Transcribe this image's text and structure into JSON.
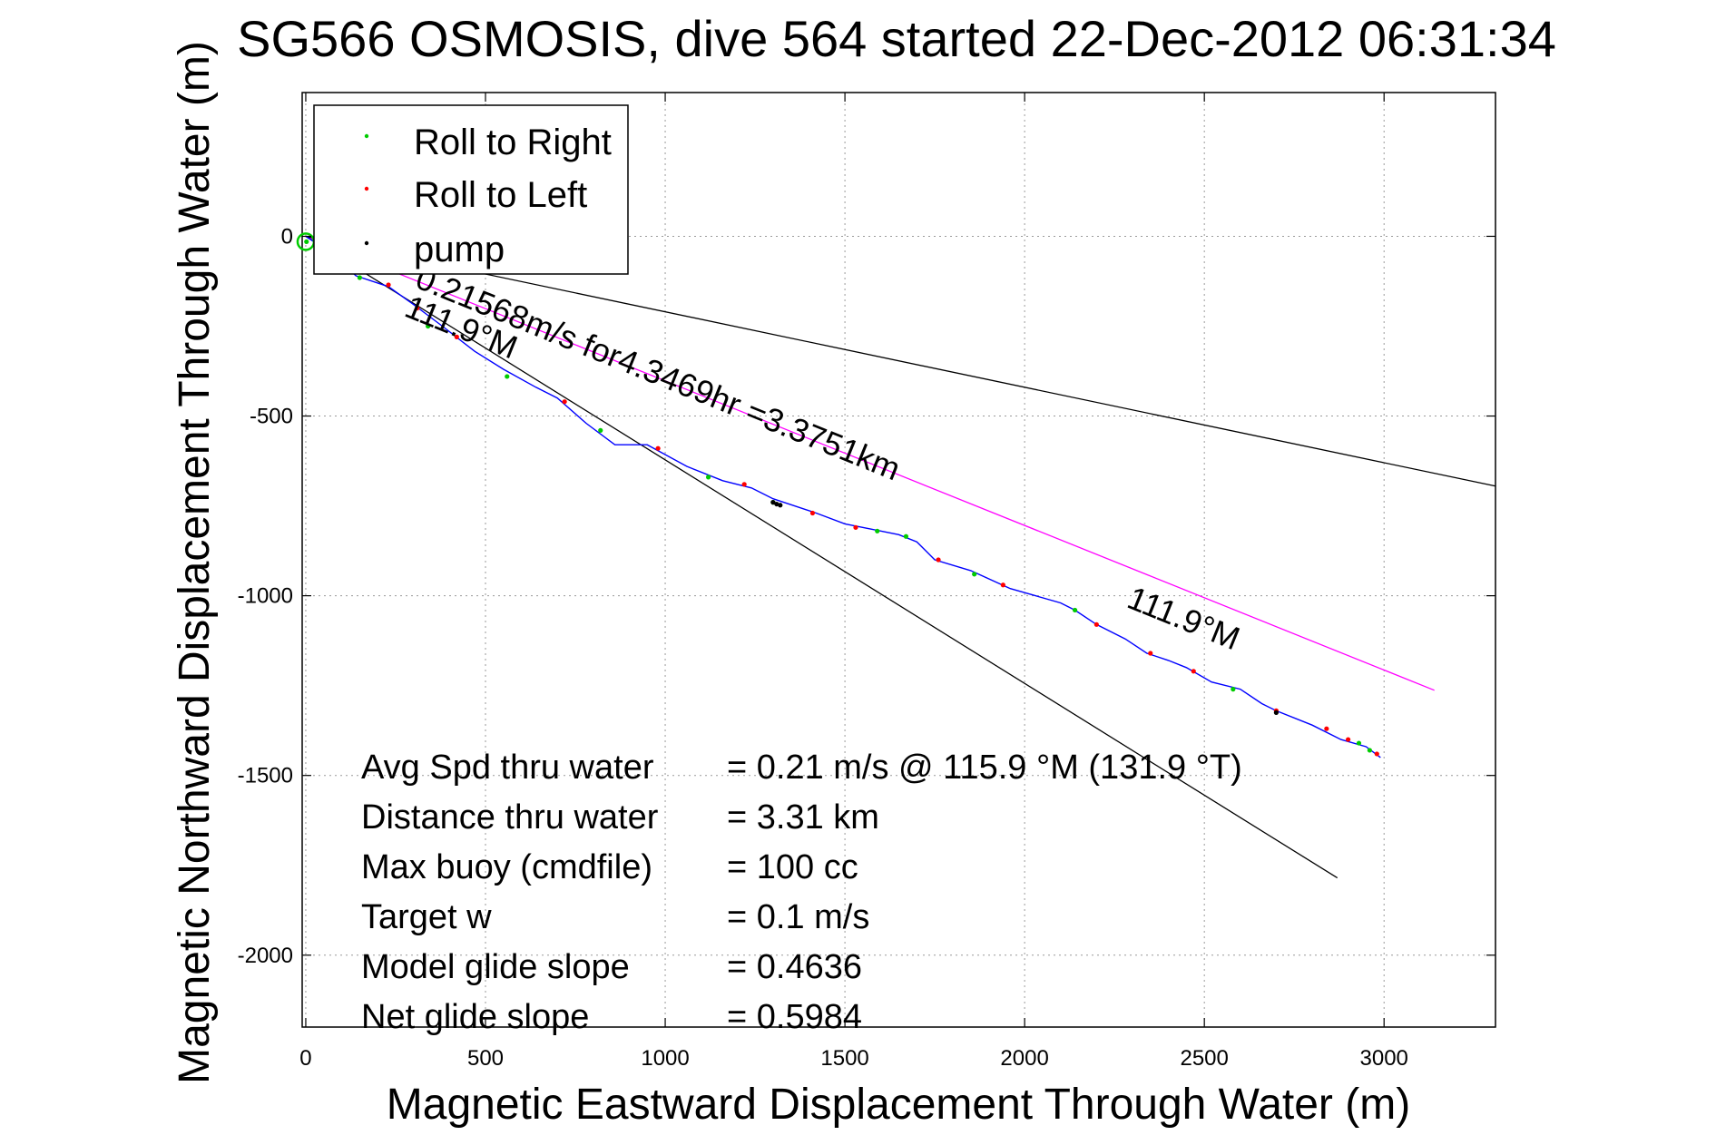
{
  "chart_data": {
    "type": "line",
    "title": "SG566 OSMOSIS, dive 564 started 22-Dec-2012 06:31:34",
    "xlabel": "Magnetic Eastward Displacement Through Water (m)",
    "ylabel": "Magnetic Northward Displacement Through Water (m)",
    "xlim": [
      -10,
      3310
    ],
    "ylim": [
      -2200,
      400
    ],
    "xticks": [
      0,
      500,
      1000,
      1500,
      2000,
      2500,
      3000
    ],
    "yticks": [
      0,
      -500,
      -1000,
      -1500,
      -2000
    ],
    "grid": true,
    "legend_position": "top-left",
    "legend": [
      {
        "label": "Roll to Right",
        "color": "#00cc00"
      },
      {
        "label": "Roll to Left",
        "color": "#ff0000"
      },
      {
        "label": "pump",
        "color": "#000000"
      }
    ],
    "track": {
      "color": "#0000ff",
      "points": [
        [
          0,
          0
        ],
        [
          60,
          -40
        ],
        [
          140,
          -110
        ],
        [
          230,
          -140
        ],
        [
          300,
          -190
        ],
        [
          380,
          -250
        ],
        [
          470,
          -320
        ],
        [
          550,
          -370
        ],
        [
          640,
          -420
        ],
        [
          700,
          -450
        ],
        [
          780,
          -520
        ],
        [
          860,
          -580
        ],
        [
          950,
          -580
        ],
        [
          1060,
          -640
        ],
        [
          1160,
          -680
        ],
        [
          1240,
          -700
        ],
        [
          1300,
          -730
        ],
        [
          1420,
          -770
        ],
        [
          1500,
          -800
        ],
        [
          1600,
          -820
        ],
        [
          1650,
          -830
        ],
        [
          1700,
          -850
        ],
        [
          1750,
          -900
        ],
        [
          1850,
          -930
        ],
        [
          1960,
          -980
        ],
        [
          2030,
          -1000
        ],
        [
          2100,
          -1020
        ],
        [
          2140,
          -1040
        ],
        [
          2200,
          -1080
        ],
        [
          2280,
          -1120
        ],
        [
          2340,
          -1160
        ],
        [
          2400,
          -1180
        ],
        [
          2450,
          -1200
        ],
        [
          2520,
          -1240
        ],
        [
          2600,
          -1260
        ],
        [
          2660,
          -1300
        ],
        [
          2700,
          -1320
        ],
        [
          2800,
          -1360
        ],
        [
          2880,
          -1400
        ],
        [
          2950,
          -1420
        ],
        [
          2990,
          -1450
        ]
      ]
    },
    "roll_right_points": [
      [
        2,
        -15
      ],
      [
        150,
        -115
      ],
      [
        340,
        -250
      ],
      [
        560,
        -390
      ],
      [
        820,
        -540
      ],
      [
        1120,
        -670
      ],
      [
        1300,
        -740
      ],
      [
        1590,
        -820
      ],
      [
        1670,
        -835
      ],
      [
        1860,
        -940
      ],
      [
        2140,
        -1040
      ],
      [
        2580,
        -1260
      ],
      [
        2930,
        -1410
      ],
      [
        2960,
        -1430
      ]
    ],
    "roll_left_points": [
      [
        230,
        -135
      ],
      [
        310,
        -200
      ],
      [
        420,
        -280
      ],
      [
        720,
        -460
      ],
      [
        980,
        -590
      ],
      [
        1220,
        -690
      ],
      [
        1410,
        -770
      ],
      [
        1530,
        -810
      ],
      [
        1760,
        -900
      ],
      [
        1940,
        -970
      ],
      [
        2200,
        -1080
      ],
      [
        2350,
        -1160
      ],
      [
        2470,
        -1210
      ],
      [
        2700,
        -1320
      ],
      [
        2840,
        -1370
      ],
      [
        2900,
        -1400
      ],
      [
        2980,
        -1440
      ]
    ],
    "pump_points": [
      [
        1300,
        -740
      ],
      [
        1310,
        -745
      ],
      [
        1320,
        -748
      ],
      [
        2700,
        -1325
      ]
    ],
    "reference_lines": [
      {
        "name": "line-through-water",
        "color": "#ff00ff",
        "points": [
          [
            0,
            0
          ],
          [
            3140,
            -1263
          ]
        ]
      },
      {
        "name": "bound-upper",
        "color": "#000000",
        "points": [
          [
            0,
            0
          ],
          [
            3310,
            -695
          ]
        ]
      },
      {
        "name": "bound-lower",
        "color": "#000000",
        "points": [
          [
            0,
            0
          ],
          [
            2870,
            -1785
          ]
        ]
      }
    ],
    "annotations": [
      {
        "text": "0.21568m/s for4.3469hr =3.3751km",
        "x": 300,
        "y": -140,
        "angle": 22
      },
      {
        "text": "111.9°M",
        "x": 270,
        "y": -220,
        "angle": 22
      },
      {
        "text": "111.9°M",
        "x": 2280,
        "y": -1030,
        "angle": 22
      }
    ],
    "stats": [
      {
        "label": "Avg Spd thru water",
        "value": "=  0.21 m/s @ 115.9 °M (131.9 °T)"
      },
      {
        "label": "Distance thru water",
        "value": "=  3.31 km"
      },
      {
        "label": "Max buoy (cmdfile)",
        "value": "= 100 cc"
      },
      {
        "label": "Target w",
        "value": "= 0.1 m/s"
      },
      {
        "label": "Model glide slope",
        "value": "= 0.4636"
      },
      {
        "label": "Net glide slope",
        "value": "= 0.5984"
      }
    ]
  }
}
